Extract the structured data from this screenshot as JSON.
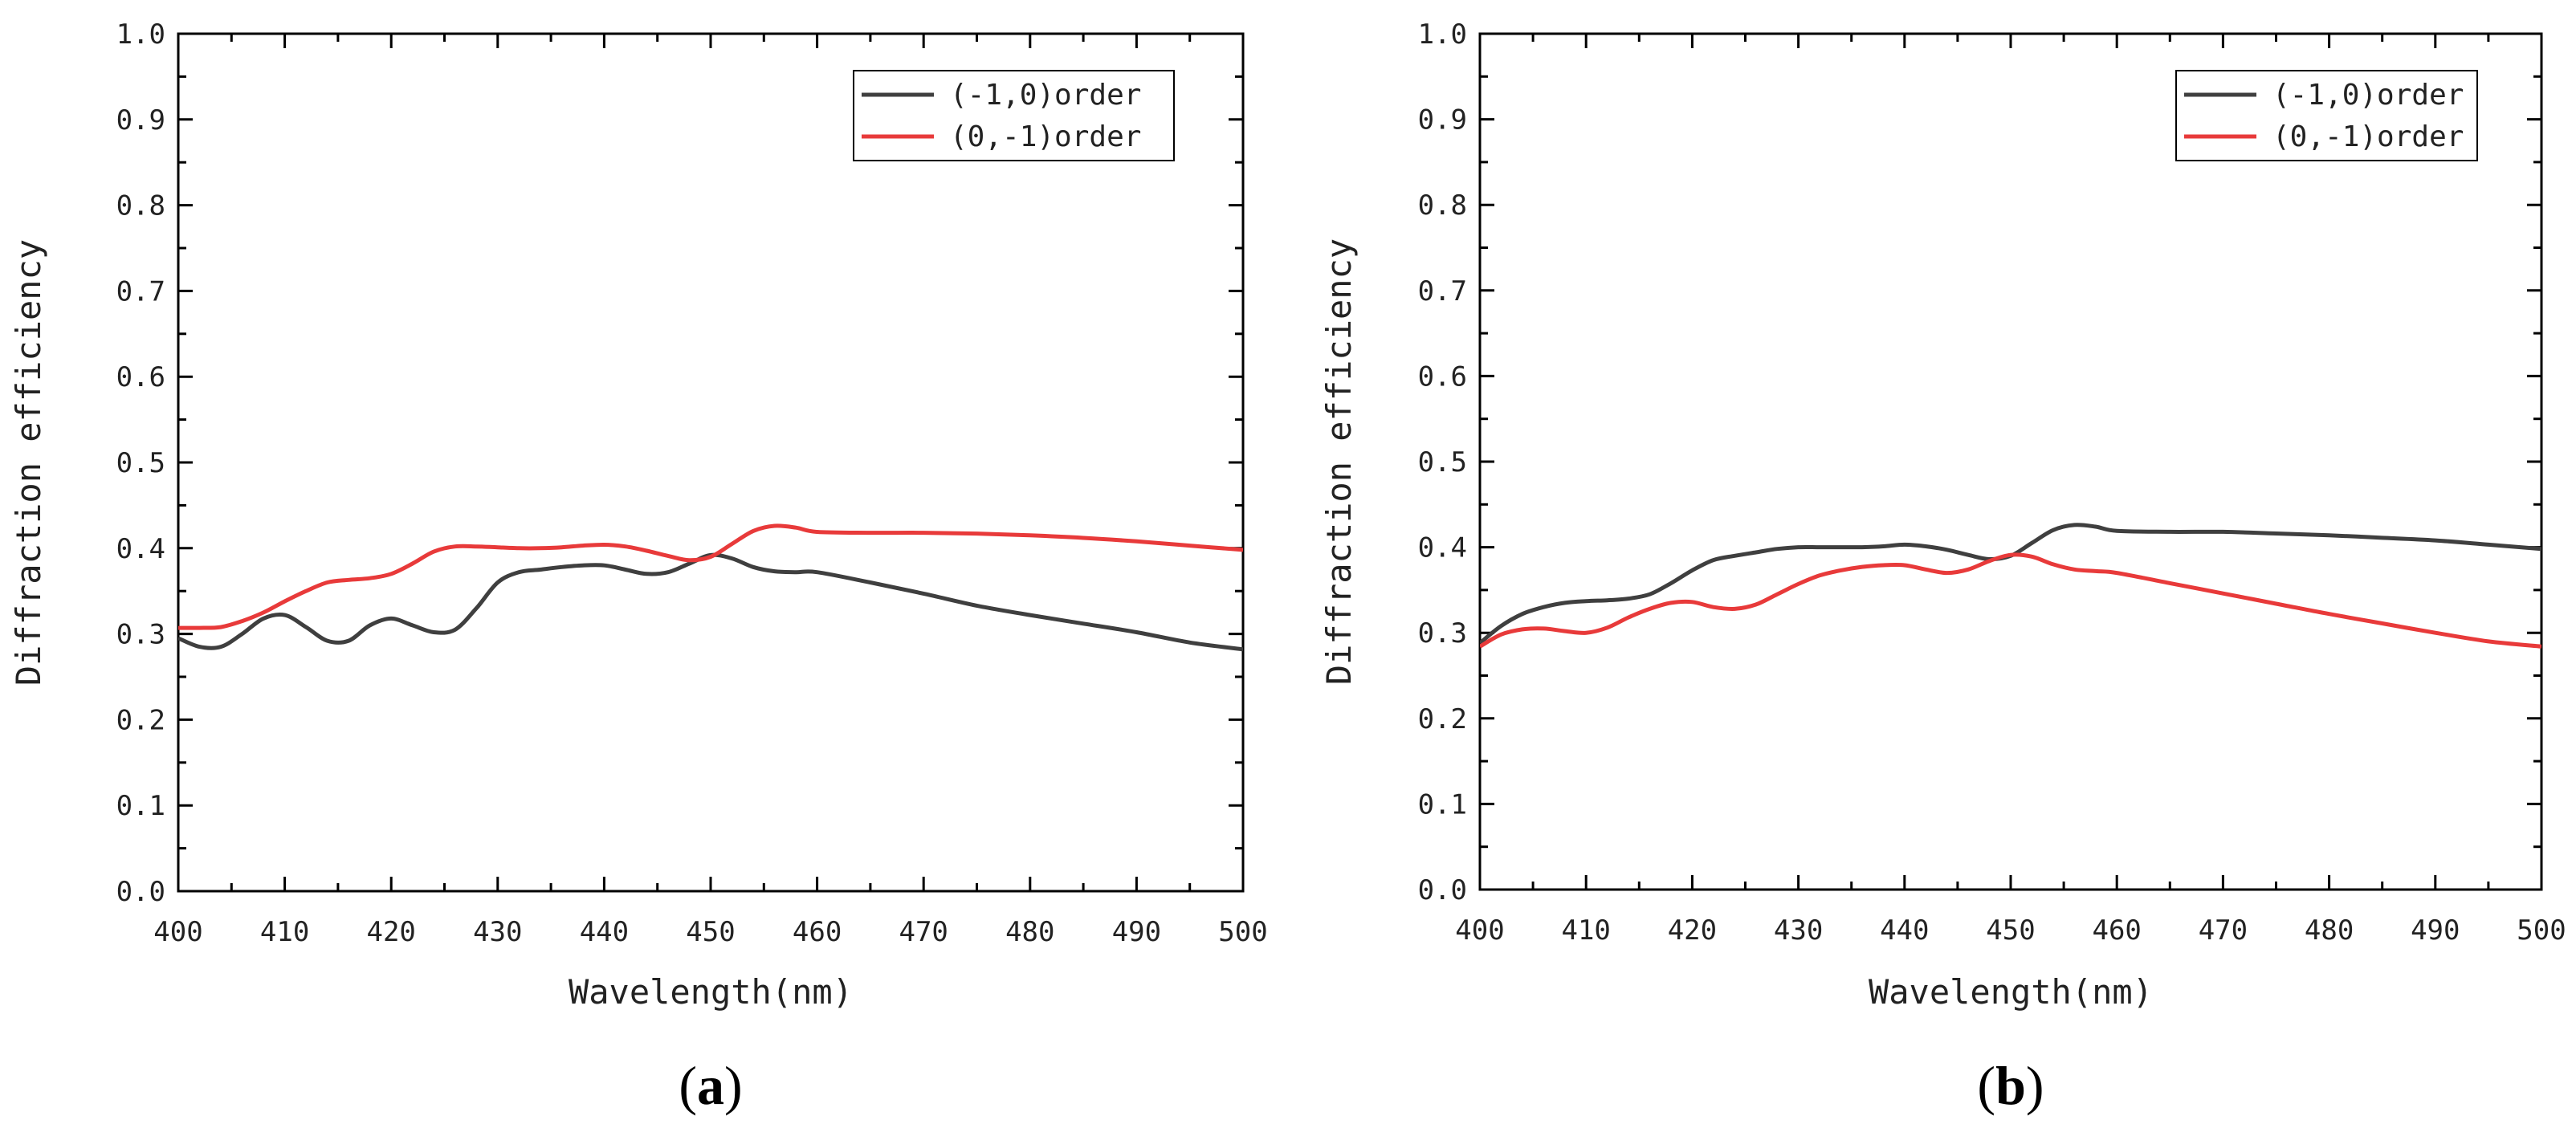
{
  "colors": {
    "series_dark": "#3f3f3f",
    "series_red": "#e83a3a",
    "axis": "#000000"
  },
  "chart_data": [
    {
      "panel": "a",
      "panel_label": {
        "open": "(",
        "letter": "a",
        "close": ")"
      },
      "type": "line",
      "xlabel": "Wavelength(nm)",
      "ylabel": "Diffraction efficiency",
      "xlim": [
        400,
        500
      ],
      "ylim": [
        0,
        1
      ],
      "xticks": [
        400,
        410,
        420,
        430,
        440,
        450,
        460,
        470,
        480,
        490,
        500
      ],
      "yticks": [
        "0.0",
        "0.1",
        "0.2",
        "0.3",
        "0.4",
        "0.5",
        "0.6",
        "0.7",
        "0.8",
        "0.9",
        "1.0"
      ],
      "legend_position": "top-right",
      "series": [
        {
          "name": "(-1,0)order",
          "color": "#3f3f3f",
          "x": [
            400,
            402,
            404,
            406,
            408,
            410,
            412,
            414,
            416,
            418,
            420,
            422,
            424,
            426,
            428,
            430,
            432,
            434,
            436,
            438,
            440,
            442,
            444,
            446,
            448,
            450,
            452,
            454,
            456,
            458,
            460,
            465,
            470,
            475,
            480,
            485,
            490,
            495,
            500
          ],
          "y": [
            0.295,
            0.285,
            0.285,
            0.3,
            0.318,
            0.322,
            0.308,
            0.292,
            0.292,
            0.31,
            0.318,
            0.31,
            0.302,
            0.305,
            0.33,
            0.36,
            0.372,
            0.375,
            0.378,
            0.38,
            0.38,
            0.375,
            0.37,
            0.372,
            0.382,
            0.392,
            0.388,
            0.378,
            0.373,
            0.372,
            0.372,
            0.36,
            0.347,
            0.333,
            0.322,
            0.312,
            0.302,
            0.29,
            0.282
          ]
        },
        {
          "name": "(0,-1)order",
          "color": "#e83a3a",
          "x": [
            400,
            402,
            404,
            406,
            408,
            410,
            412,
            414,
            416,
            418,
            420,
            422,
            424,
            426,
            428,
            430,
            432,
            434,
            436,
            438,
            440,
            442,
            444,
            446,
            448,
            450,
            452,
            454,
            456,
            458,
            460,
            465,
            470,
            475,
            480,
            485,
            490,
            495,
            500
          ],
          "y": [
            0.307,
            0.307,
            0.308,
            0.315,
            0.325,
            0.338,
            0.35,
            0.36,
            0.363,
            0.365,
            0.37,
            0.382,
            0.396,
            0.402,
            0.402,
            0.401,
            0.4,
            0.4,
            0.401,
            0.403,
            0.404,
            0.402,
            0.397,
            0.391,
            0.386,
            0.39,
            0.405,
            0.42,
            0.426,
            0.424,
            0.419,
            0.418,
            0.418,
            0.417,
            0.415,
            0.412,
            0.408,
            0.403,
            0.398
          ]
        }
      ]
    },
    {
      "panel": "b",
      "panel_label": {
        "open": "(",
        "letter": "b",
        "close": ")"
      },
      "type": "line",
      "xlabel": "Wavelength(nm)",
      "ylabel": "Diffraction efficiency",
      "xlim": [
        400,
        500
      ],
      "ylim": [
        0,
        1
      ],
      "xticks": [
        400,
        410,
        420,
        430,
        440,
        450,
        460,
        470,
        480,
        490,
        500
      ],
      "yticks": [
        "0.0",
        "0.1",
        "0.2",
        "0.3",
        "0.4",
        "0.5",
        "0.6",
        "0.7",
        "0.8",
        "0.9",
        "1.0"
      ],
      "legend_position": "top-right",
      "series": [
        {
          "name": "(-1,0)order",
          "color": "#3f3f3f",
          "x": [
            400,
            402,
            404,
            406,
            408,
            410,
            412,
            414,
            416,
            418,
            420,
            422,
            424,
            426,
            428,
            430,
            432,
            434,
            436,
            438,
            440,
            442,
            444,
            446,
            448,
            450,
            452,
            454,
            456,
            458,
            460,
            465,
            470,
            475,
            480,
            485,
            490,
            495,
            500
          ],
          "y": [
            0.288,
            0.308,
            0.322,
            0.33,
            0.335,
            0.337,
            0.338,
            0.34,
            0.345,
            0.358,
            0.373,
            0.385,
            0.39,
            0.394,
            0.398,
            0.4,
            0.4,
            0.4,
            0.4,
            0.401,
            0.403,
            0.401,
            0.397,
            0.391,
            0.386,
            0.39,
            0.405,
            0.42,
            0.426,
            0.424,
            0.419,
            0.418,
            0.418,
            0.416,
            0.414,
            0.411,
            0.408,
            0.403,
            0.398
          ]
        },
        {
          "name": "(0,-1)order",
          "color": "#e83a3a",
          "x": [
            400,
            402,
            404,
            406,
            408,
            410,
            412,
            414,
            416,
            418,
            420,
            422,
            424,
            426,
            428,
            430,
            432,
            434,
            436,
            438,
            440,
            442,
            444,
            446,
            448,
            450,
            452,
            454,
            456,
            458,
            460,
            465,
            470,
            475,
            480,
            485,
            490,
            495,
            500
          ],
          "y": [
            0.284,
            0.298,
            0.304,
            0.305,
            0.302,
            0.3,
            0.306,
            0.318,
            0.328,
            0.335,
            0.336,
            0.33,
            0.328,
            0.333,
            0.345,
            0.357,
            0.367,
            0.373,
            0.377,
            0.379,
            0.379,
            0.374,
            0.37,
            0.374,
            0.384,
            0.391,
            0.389,
            0.38,
            0.374,
            0.372,
            0.37,
            0.358,
            0.346,
            0.334,
            0.322,
            0.311,
            0.3,
            0.29,
            0.284
          ]
        }
      ]
    }
  ]
}
